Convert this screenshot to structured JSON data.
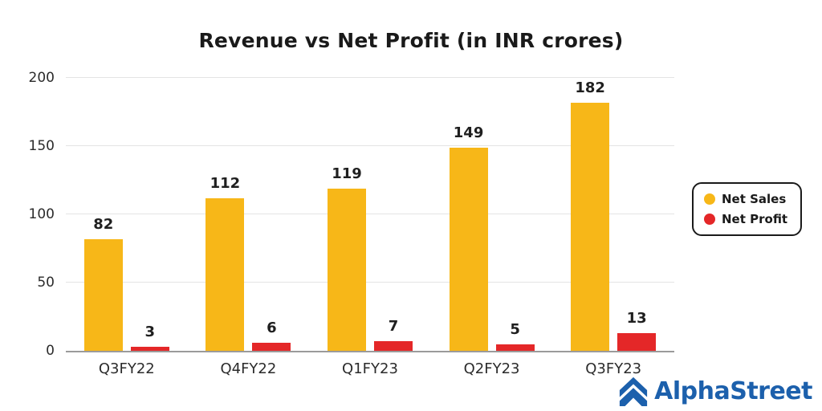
{
  "chart_data": {
    "type": "bar",
    "title": "Revenue vs Net Profit (in INR crores)",
    "categories": [
      "Q3FY22",
      "Q4FY22",
      "Q1FY23",
      "Q2FY23",
      "Q3FY23"
    ],
    "series": [
      {
        "name": "Net Sales",
        "color": "#f7b718",
        "values": [
          82,
          112,
          119,
          149,
          182
        ]
      },
      {
        "name": "Net Profit",
        "color": "#e42728",
        "values": [
          3,
          6,
          7,
          5,
          13
        ]
      }
    ],
    "xlabel": "",
    "ylabel": "",
    "ylim": [
      0,
      200
    ],
    "yticks": [
      0,
      50,
      100,
      150,
      200
    ],
    "grid": true,
    "legend_position": "right"
  },
  "legend": {
    "items": [
      {
        "label": "Net Sales",
        "color": "#f7b718"
      },
      {
        "label": "Net Profit",
        "color": "#e42728"
      }
    ]
  },
  "branding": {
    "logo_text": "AlphaStreet",
    "logo_color": "#1c60ac"
  }
}
